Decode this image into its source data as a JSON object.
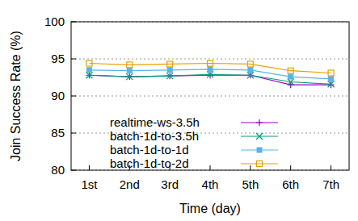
{
  "chart_data": {
    "type": "line",
    "x_label": "Time (day)",
    "y_label": "Join Success Rate (%)",
    "categories": [
      "1st",
      "2nd",
      "3rd",
      "4th",
      "5th",
      "6th",
      "7th"
    ],
    "ylim": [
      80,
      100
    ],
    "yticks": [
      80,
      85,
      90,
      95,
      100
    ],
    "grid": true,
    "legend": "bottom",
    "series": [
      {
        "name": "realtime-ws-3.5h",
        "color": "#9400d3",
        "marker": "plus",
        "line_style": "solid",
        "values": [
          92.8,
          92.6,
          92.7,
          92.8,
          92.8,
          91.5,
          91.5
        ]
      },
      {
        "name": "batch-1d-to-3.5h",
        "color": "#009e73",
        "marker": "cross",
        "line_style": "solid",
        "values": [
          92.8,
          92.6,
          92.7,
          92.9,
          92.8,
          91.9,
          91.6
        ]
      },
      {
        "name": "batch-1d-to-1d",
        "color": "#56b4e9",
        "marker": "filled-square",
        "line_style": "solid",
        "values": [
          93.5,
          93.4,
          93.5,
          93.6,
          93.5,
          92.6,
          92.3
        ]
      },
      {
        "name": "batch-1d-to-2d",
        "color": "#e69f00",
        "marker": "square",
        "line_style": "solid",
        "values": [
          94.4,
          94.2,
          94.3,
          94.4,
          94.3,
          93.4,
          93.1
        ]
      }
    ]
  }
}
